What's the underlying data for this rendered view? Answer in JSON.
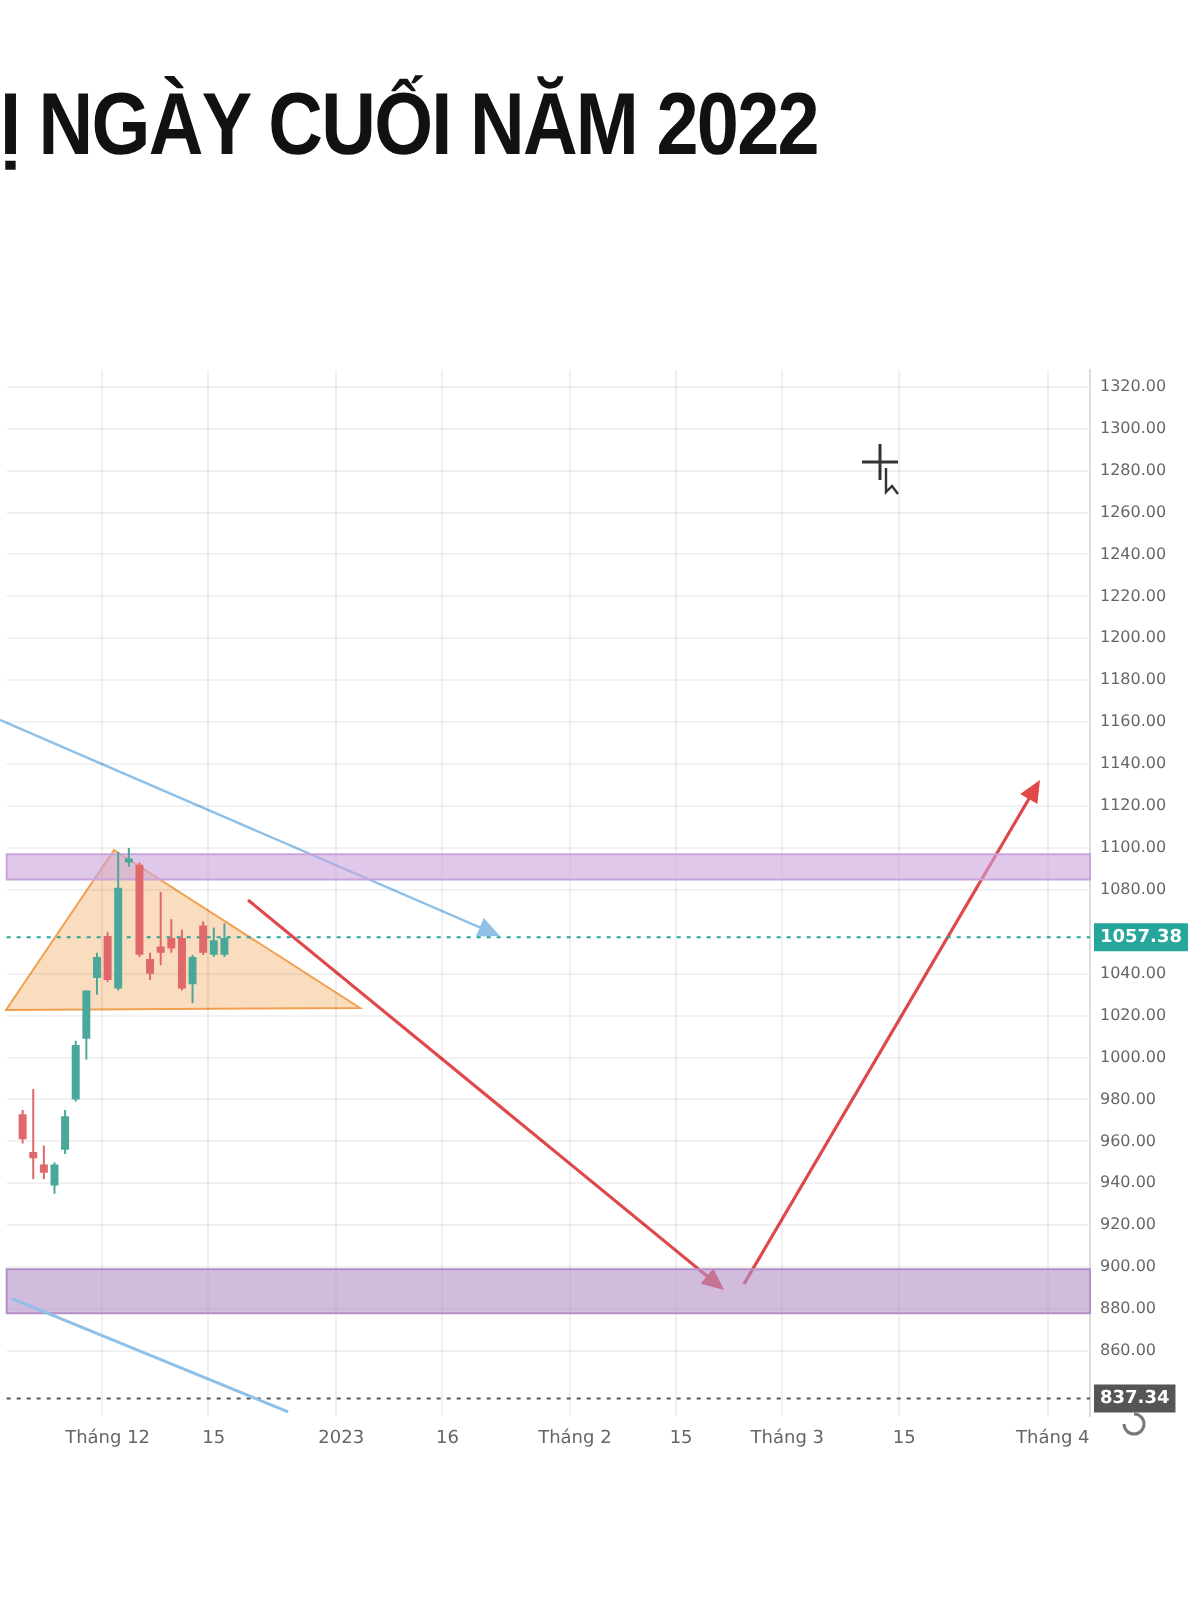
{
  "chart_data": {
    "type": "candlestick",
    "title": "Ị NGÀY CUỐI NĂM 2022",
    "categories": [
      null,
      null,
      null,
      null,
      null,
      null,
      null,
      null,
      null,
      "Tháng 12",
      null,
      null,
      null,
      null,
      null,
      null,
      null,
      null,
      null,
      "15",
      null,
      null,
      null,
      null,
      null,
      null,
      null,
      null,
      null,
      null,
      null,
      "2023",
      null,
      null,
      null,
      null,
      null,
      null,
      null,
      null,
      null,
      "16",
      null,
      null,
      null,
      null,
      null,
      null,
      null,
      null,
      null,
      null,
      null,
      "Tháng 2",
      null,
      null,
      null,
      null,
      null,
      null,
      null,
      null,
      null,
      "15",
      null,
      null,
      null,
      null,
      null,
      null,
      null,
      null,
      null,
      "Tháng 3",
      null,
      null,
      null,
      null,
      null,
      null,
      null,
      null,
      null,
      null,
      "15",
      null,
      null,
      null,
      null,
      null,
      null,
      null,
      null,
      null,
      null,
      null,
      null,
      null,
      "Tháng 4",
      null,
      null,
      null
    ],
    "ohlc": [
      null,
      [
        973,
        975,
        959,
        961
      ],
      [
        955,
        985,
        942,
        952
      ],
      [
        949,
        958,
        942,
        945
      ],
      [
        939,
        950,
        935,
        949
      ],
      [
        956,
        975,
        954,
        972
      ],
      [
        980,
        1008,
        979,
        1006
      ],
      [
        1009,
        1032,
        999,
        1032
      ],
      [
        1038,
        1050,
        1030,
        1048
      ],
      [
        1058,
        1060,
        1036,
        1037
      ],
      [
        1033,
        1098,
        1032,
        1081
      ],
      [
        1093,
        1100,
        1091,
        1095
      ],
      [
        1092,
        1093,
        1048,
        1049
      ],
      [
        1047,
        1050,
        1037,
        1040
      ],
      [
        1053,
        1079,
        1044,
        1050
      ],
      [
        1057,
        1066,
        1050,
        1052
      ],
      [
        1057,
        1061,
        1032,
        1033
      ],
      [
        1035,
        1049,
        1026,
        1048
      ],
      [
        1063,
        1065,
        1049,
        1050
      ],
      [
        1049,
        1062,
        1048,
        1056
      ],
      [
        1049,
        1064,
        1048,
        1057
      ],
      null,
      null,
      null,
      null,
      null,
      null,
      null,
      null,
      null,
      null,
      null,
      null,
      null,
      null,
      null,
      null,
      null,
      null,
      null,
      null,
      null,
      null,
      null,
      null,
      null,
      null,
      null,
      null,
      null,
      null,
      null,
      null,
      null,
      null,
      null,
      null,
      null,
      null,
      null,
      null,
      null,
      null,
      null,
      null,
      null,
      null,
      null,
      null,
      null,
      null,
      null,
      null,
      null,
      null,
      null,
      null,
      null,
      null,
      null,
      null,
      null,
      null,
      null,
      null,
      null,
      null,
      null,
      null,
      null,
      null,
      null,
      null,
      null,
      null,
      null,
      null,
      null,
      null,
      null,
      null,
      null
    ],
    "colors": [
      null,
      "#e0686a",
      "#e0686a",
      "#e0686a",
      "#4aa89a",
      "#4aa89a",
      "#4aa89a",
      "#4aa89a",
      "#4aa89a",
      "#e0686a",
      "#4aa89a",
      "#4aa89a",
      "#e0686a",
      "#e0686a",
      "#e0686a",
      "#e0686a",
      "#e0686a",
      "#4aa89a",
      "#e0686a",
      "#4aa89a",
      "#4aa89a",
      null,
      null,
      null,
      null,
      null,
      null,
      null,
      null,
      null,
      null,
      null,
      null,
      null,
      null,
      null,
      null,
      null,
      null,
      null,
      null,
      null,
      null,
      null,
      null,
      null,
      null,
      null,
      null,
      null,
      null,
      null,
      null,
      null,
      null,
      null,
      null,
      null,
      null,
      null,
      null,
      null,
      null,
      null,
      null,
      null,
      null,
      null,
      null,
      null,
      null,
      null,
      null,
      null,
      null,
      null,
      null,
      null,
      null,
      null,
      null,
      null,
      null,
      null,
      null,
      null,
      null,
      null,
      null,
      null,
      null,
      null,
      null,
      null,
      null,
      null,
      null,
      null,
      null,
      null,
      null,
      null
    ],
    "series": [
      {
        "type": "line",
        "color": "#8ec0e8",
        "values": [
          885,
          null,
          null,
          null,
          null,
          null,
          null,
          null,
          null,
          null,
          null,
          null,
          null,
          null,
          null,
          null,
          null,
          null,
          null,
          null,
          null,
          null,
          null,
          null,
          null,
          null,
          831,
          null,
          null,
          null,
          null,
          null,
          null,
          null,
          null,
          null,
          null,
          null,
          null,
          null,
          null,
          null,
          null,
          null,
          null,
          null,
          null,
          null,
          null,
          null,
          null,
          null,
          null,
          null,
          null,
          null,
          null,
          null,
          null,
          null,
          null,
          null,
          null,
          null,
          null,
          null,
          null,
          null,
          null,
          null,
          null,
          null,
          null,
          null,
          null,
          null,
          null,
          null,
          null,
          null,
          null,
          null,
          null,
          null,
          null,
          null,
          null,
          null,
          null,
          null,
          null,
          null,
          null,
          null,
          null,
          null,
          null,
          null,
          null,
          null,
          null,
          null
        ]
      }
    ],
    "ylim": [
      829,
      1328
    ],
    "yticks": [
      {
        "value": 860,
        "label": "860.00"
      },
      {
        "value": 880,
        "label": "880.00"
      },
      {
        "value": 900,
        "label": "900.00"
      },
      {
        "value": 920,
        "label": "920.00"
      },
      {
        "value": 940,
        "label": "940.00"
      },
      {
        "value": 960,
        "label": "960.00"
      },
      {
        "value": 980,
        "label": "980.00"
      },
      {
        "value": 1000,
        "label": "1000.00"
      },
      {
        "value": 1020,
        "label": "1020.00"
      },
      {
        "value": 1040,
        "label": "1040.00"
      },
      {
        "value": 1080,
        "label": "1080.00"
      },
      {
        "value": 1100,
        "label": "1100.00"
      },
      {
        "value": 1120,
        "label": "1120.00"
      },
      {
        "value": 1140,
        "label": "1140.00"
      },
      {
        "value": 1160,
        "label": "1160.00"
      },
      {
        "value": 1180,
        "label": "1180.00"
      },
      {
        "value": 1200,
        "label": "1200.00"
      },
      {
        "value": 1220,
        "label": "1220.00"
      },
      {
        "value": 1240,
        "label": "1240.00"
      },
      {
        "value": 1260,
        "label": "1260.00"
      },
      {
        "value": 1280,
        "label": "1280.00"
      },
      {
        "value": 1300,
        "label": "1300.00"
      },
      {
        "value": 1320,
        "label": "1320.00"
      }
    ],
    "ref_lines": [
      {
        "axis": "y",
        "value": 1057.38,
        "label": "1057.38",
        "color": "#26a69a",
        "line_style": "dotted"
      },
      {
        "axis": "y",
        "value": 837.34,
        "label": "837.34",
        "color": "#555555",
        "line_style": "dotted"
      }
    ],
    "bands": [
      {
        "axis": "y",
        "from": 1085,
        "to": 1097,
        "color": "#c9a3dc"
      },
      {
        "axis": "y",
        "from": 878,
        "to": 899,
        "color": "#b48fc8"
      }
    ],
    "grid": true
  }
}
